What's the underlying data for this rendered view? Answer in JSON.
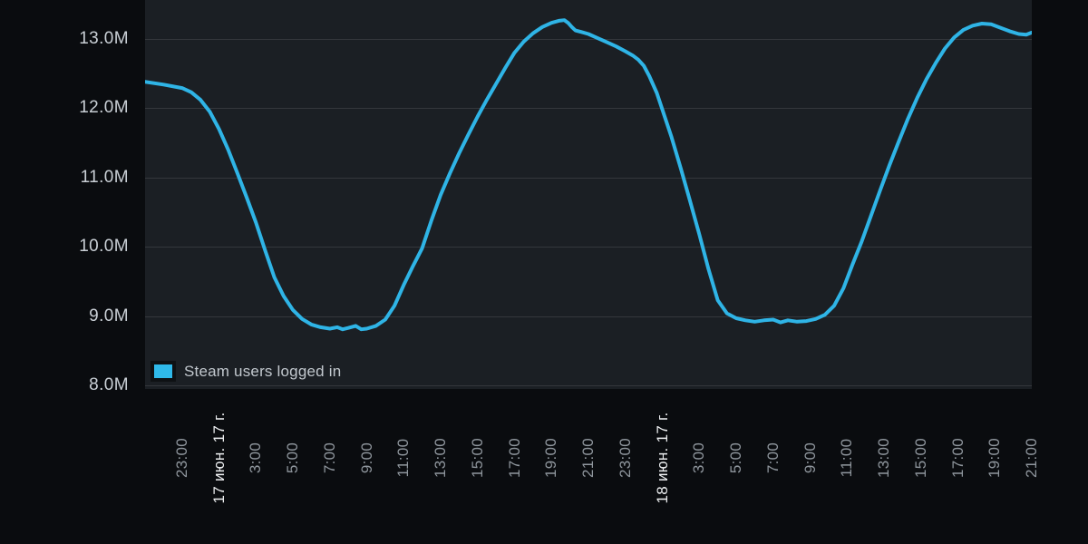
{
  "accent_color": "#2fb4e6",
  "plot_bg_color": "#1b1f24",
  "page_bg_color": "#0a0c0f",
  "gridline_color": "#34373c",
  "legend": {
    "swatch_icon": "cyan-square",
    "label": "Steam users logged in"
  },
  "chart_data": {
    "type": "line",
    "title": "",
    "xlabel": "",
    "ylabel": "",
    "legend_entries": [
      "Steam users logged in"
    ],
    "legend_position": "bottom-left-inside",
    "grid": "horizontal-only",
    "line_color": "#2fb4e6",
    "ylim": [
      7.95,
      13.56
    ],
    "x_span_hours": 48,
    "yticks": [
      {
        "value": 8.0,
        "label": "8.0M"
      },
      {
        "value": 9.0,
        "label": "9.0M"
      },
      {
        "value": 10.0,
        "label": "10.0M"
      },
      {
        "value": 11.0,
        "label": "11.0M"
      },
      {
        "value": 12.0,
        "label": "12.0M"
      },
      {
        "value": 13.0,
        "label": "13.0M"
      }
    ],
    "xticks": [
      {
        "t": 2,
        "label": "23:00",
        "is_date": false
      },
      {
        "t": 4,
        "label": "17 июн. 17 г.",
        "is_date": true
      },
      {
        "t": 6,
        "label": "3:00",
        "is_date": false
      },
      {
        "t": 8,
        "label": "5:00",
        "is_date": false
      },
      {
        "t": 10,
        "label": "7:00",
        "is_date": false
      },
      {
        "t": 12,
        "label": "9:00",
        "is_date": false
      },
      {
        "t": 14,
        "label": "11:00",
        "is_date": false
      },
      {
        "t": 16,
        "label": "13:00",
        "is_date": false
      },
      {
        "t": 18,
        "label": "15:00",
        "is_date": false
      },
      {
        "t": 20,
        "label": "17:00",
        "is_date": false
      },
      {
        "t": 22,
        "label": "19:00",
        "is_date": false
      },
      {
        "t": 24,
        "label": "21:00",
        "is_date": false
      },
      {
        "t": 26,
        "label": "23:00",
        "is_date": false
      },
      {
        "t": 28,
        "label": "18 июн. 17 г.",
        "is_date": true
      },
      {
        "t": 30,
        "label": "3:00",
        "is_date": false
      },
      {
        "t": 32,
        "label": "5:00",
        "is_date": false
      },
      {
        "t": 34,
        "label": "7:00",
        "is_date": false
      },
      {
        "t": 36,
        "label": "9:00",
        "is_date": false
      },
      {
        "t": 38,
        "label": "11:00",
        "is_date": false
      },
      {
        "t": 40,
        "label": "13:00",
        "is_date": false
      },
      {
        "t": 42,
        "label": "15:00",
        "is_date": false
      },
      {
        "t": 44,
        "label": "17:00",
        "is_date": false
      },
      {
        "t": 46,
        "label": "19:00",
        "is_date": false
      },
      {
        "t": 48,
        "label": "21:00",
        "is_date": false
      }
    ],
    "series": [
      {
        "name": "Steam users logged in",
        "unit": "millions of users",
        "points": [
          [
            0,
            12.38
          ],
          [
            1,
            12.34
          ],
          [
            2,
            12.29
          ],
          [
            2.5,
            12.23
          ],
          [
            3,
            12.12
          ],
          [
            3.5,
            11.95
          ],
          [
            4,
            11.7
          ],
          [
            4.5,
            11.4
          ],
          [
            5,
            11.06
          ],
          [
            5.5,
            10.71
          ],
          [
            6,
            10.35
          ],
          [
            6.5,
            9.95
          ],
          [
            7,
            9.56
          ],
          [
            7.5,
            9.29
          ],
          [
            8,
            9.09
          ],
          [
            8.5,
            8.96
          ],
          [
            9,
            8.88
          ],
          [
            9.5,
            8.84
          ],
          [
            10,
            8.82
          ],
          [
            10.4,
            8.84
          ],
          [
            10.7,
            8.81
          ],
          [
            11,
            8.83
          ],
          [
            11.4,
            8.86
          ],
          [
            11.7,
            8.81
          ],
          [
            12,
            8.82
          ],
          [
            12.5,
            8.86
          ],
          [
            13,
            8.95
          ],
          [
            13.5,
            9.15
          ],
          [
            14,
            9.45
          ],
          [
            14.5,
            9.72
          ],
          [
            15,
            9.98
          ],
          [
            15.5,
            10.38
          ],
          [
            16,
            10.75
          ],
          [
            16.5,
            11.06
          ],
          [
            17,
            11.35
          ],
          [
            17.5,
            11.62
          ],
          [
            18,
            11.88
          ],
          [
            18.5,
            12.12
          ],
          [
            19,
            12.35
          ],
          [
            19.5,
            12.58
          ],
          [
            20,
            12.8
          ],
          [
            20.5,
            12.96
          ],
          [
            21,
            13.08
          ],
          [
            21.5,
            13.17
          ],
          [
            22,
            13.23
          ],
          [
            22.4,
            13.26
          ],
          [
            22.7,
            13.27
          ],
          [
            22.9,
            13.23
          ],
          [
            23.1,
            13.17
          ],
          [
            23.3,
            13.12
          ],
          [
            23.6,
            13.1
          ],
          [
            24,
            13.07
          ],
          [
            24.5,
            13.01
          ],
          [
            25,
            12.95
          ],
          [
            25.5,
            12.89
          ],
          [
            26,
            12.82
          ],
          [
            26.4,
            12.76
          ],
          [
            26.7,
            12.7
          ],
          [
            27,
            12.61
          ],
          [
            27.3,
            12.46
          ],
          [
            27.7,
            12.22
          ],
          [
            28,
            11.98
          ],
          [
            28.5,
            11.58
          ],
          [
            29,
            11.13
          ],
          [
            29.5,
            10.66
          ],
          [
            30,
            10.18
          ],
          [
            30.5,
            9.68
          ],
          [
            31,
            9.23
          ],
          [
            31.5,
            9.04
          ],
          [
            32,
            8.97
          ],
          [
            32.5,
            8.94
          ],
          [
            33,
            8.92
          ],
          [
            33.5,
            8.94
          ],
          [
            34,
            8.95
          ],
          [
            34.4,
            8.91
          ],
          [
            34.8,
            8.94
          ],
          [
            35.3,
            8.92
          ],
          [
            35.8,
            8.93
          ],
          [
            36.3,
            8.96
          ],
          [
            36.8,
            9.02
          ],
          [
            37.3,
            9.15
          ],
          [
            37.8,
            9.4
          ],
          [
            38.3,
            9.75
          ],
          [
            38.8,
            10.08
          ],
          [
            39.3,
            10.45
          ],
          [
            39.8,
            10.82
          ],
          [
            40.3,
            11.18
          ],
          [
            40.8,
            11.52
          ],
          [
            41.3,
            11.85
          ],
          [
            41.8,
            12.15
          ],
          [
            42.3,
            12.42
          ],
          [
            42.8,
            12.65
          ],
          [
            43.3,
            12.86
          ],
          [
            43.8,
            13.02
          ],
          [
            44.3,
            13.13
          ],
          [
            44.8,
            13.19
          ],
          [
            45.3,
            13.22
          ],
          [
            45.8,
            13.21
          ],
          [
            46.3,
            13.16
          ],
          [
            46.8,
            13.11
          ],
          [
            47.3,
            13.07
          ],
          [
            47.7,
            13.06
          ],
          [
            48,
            13.09
          ]
        ]
      }
    ]
  }
}
